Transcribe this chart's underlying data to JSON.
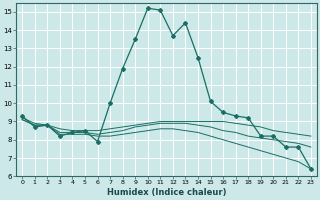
{
  "xlabel": "Humidex (Indice chaleur)",
  "ylabel": "",
  "xlim": [
    -0.5,
    23.5
  ],
  "ylim": [
    6,
    15.5
  ],
  "yticks": [
    6,
    7,
    8,
    9,
    10,
    11,
    12,
    13,
    14,
    15
  ],
  "xticks": [
    0,
    1,
    2,
    3,
    4,
    5,
    6,
    7,
    8,
    9,
    10,
    11,
    12,
    13,
    14,
    15,
    16,
    17,
    18,
    19,
    20,
    21,
    22,
    23
  ],
  "bg_color": "#cce8e8",
  "line_color": "#1a6e64",
  "grid_color": "#ffffff",
  "lines": [
    {
      "x": [
        0,
        1,
        2,
        3,
        4,
        5,
        6,
        7,
        8,
        9,
        10,
        11,
        12,
        13,
        14,
        15,
        16,
        17,
        18,
        19,
        20,
        21,
        22,
        23
      ],
      "y": [
        9.3,
        8.7,
        8.8,
        8.2,
        8.4,
        8.5,
        7.9,
        10.0,
        11.9,
        13.5,
        15.2,
        15.1,
        13.7,
        14.4,
        12.5,
        10.1,
        9.5,
        9.3,
        9.2,
        8.2,
        8.2,
        7.6,
        7.6,
        6.4
      ],
      "marker": true
    },
    {
      "x": [
        0,
        1,
        2,
        3,
        4,
        5,
        6,
        7,
        8,
        9,
        10,
        11,
        12,
        13,
        14,
        15,
        16,
        17,
        18,
        19,
        20,
        21,
        22,
        23
      ],
      "y": [
        9.1,
        8.8,
        8.8,
        8.6,
        8.5,
        8.5,
        8.5,
        8.6,
        8.7,
        8.8,
        8.9,
        9.0,
        9.0,
        9.0,
        9.0,
        9.0,
        9.0,
        8.9,
        8.8,
        8.7,
        8.5,
        8.4,
        8.3,
        8.2
      ],
      "marker": false
    },
    {
      "x": [
        0,
        1,
        2,
        3,
        4,
        5,
        6,
        7,
        8,
        9,
        10,
        11,
        12,
        13,
        14,
        15,
        16,
        17,
        18,
        19,
        20,
        21,
        22,
        23
      ],
      "y": [
        9.1,
        8.8,
        8.8,
        8.4,
        8.4,
        8.4,
        8.3,
        8.4,
        8.5,
        8.7,
        8.8,
        8.9,
        8.9,
        8.9,
        8.8,
        8.7,
        8.5,
        8.4,
        8.2,
        8.1,
        8.0,
        7.9,
        7.8,
        7.6
      ],
      "marker": false
    },
    {
      "x": [
        0,
        1,
        2,
        3,
        4,
        5,
        6,
        7,
        8,
        9,
        10,
        11,
        12,
        13,
        14,
        15,
        16,
        17,
        18,
        19,
        20,
        21,
        22,
        23
      ],
      "y": [
        9.2,
        8.9,
        8.8,
        8.3,
        8.3,
        8.3,
        8.2,
        8.2,
        8.3,
        8.4,
        8.5,
        8.6,
        8.6,
        8.5,
        8.4,
        8.2,
        8.0,
        7.8,
        7.6,
        7.4,
        7.2,
        7.0,
        6.8,
        6.4
      ],
      "marker": false
    }
  ]
}
